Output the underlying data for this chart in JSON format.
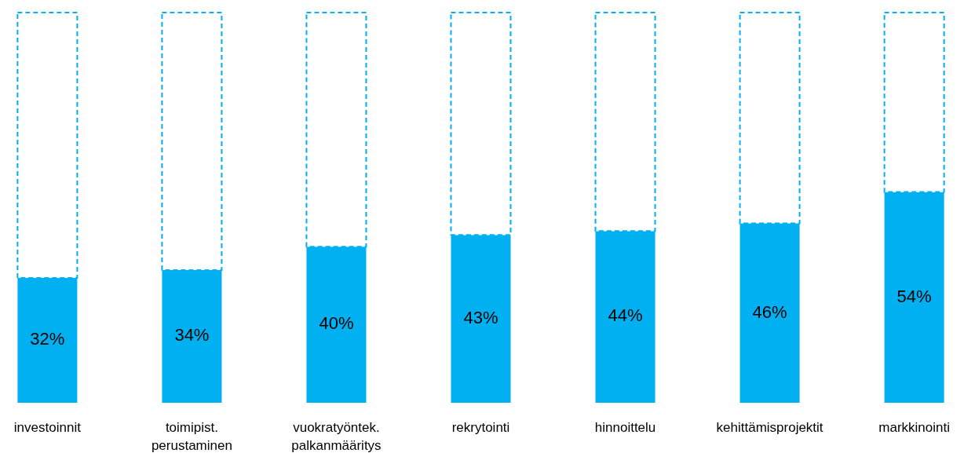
{
  "chart_data": {
    "type": "bar",
    "stacked": true,
    "categories": [
      "investoinnit",
      "toimipist.\nperustaminen",
      "vuokratyöntek.\npalkanmääritys",
      "rekrytointi",
      "hinnoittelu",
      "kehittämisprojektit",
      "markkinointi"
    ],
    "series": [
      {
        "color": "#00b0f0",
        "values": [
          32,
          34,
          40,
          43,
          44,
          46,
          54
        ],
        "value_labels": [
          "32%",
          "34%",
          "40%",
          "43%",
          "44%",
          "46%",
          "54%"
        ]
      },
      {
        "color": "#ffffff",
        "line_style": "dashed",
        "values": [
          68,
          66,
          60,
          57,
          56,
          54,
          46
        ]
      }
    ]
  }
}
